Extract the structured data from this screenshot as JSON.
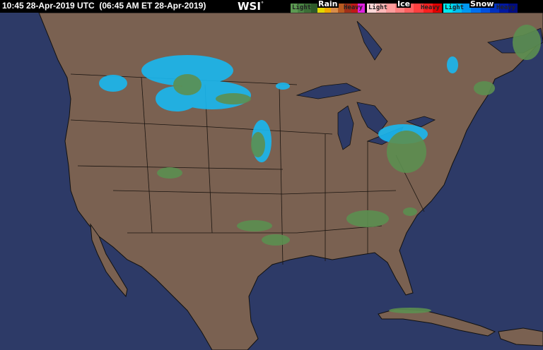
{
  "header": {
    "timestamp": "10:45 28-Apr-2019 UTC  (06:45 AM ET 28-Apr-2019)",
    "logo": "WSI",
    "logo_mark": "°"
  },
  "legend": {
    "rain": {
      "title": "Rain",
      "light": "Light",
      "heavy": "Heavy",
      "colors": [
        "#5c9a52",
        "#4a8444",
        "#3b6e36",
        "#2e5a2a",
        "#e2d800",
        "#f0a800",
        "#d88c4a",
        "#b85a20",
        "#a03018",
        "#c01818",
        "#e020e0"
      ]
    },
    "ice": {
      "title": "Ice",
      "light": "Light",
      "heavy": "Heavy",
      "colors": [
        "#ffd8d8",
        "#ffb8b8",
        "#ff9c9c",
        "#ff8080",
        "#ff6060",
        "#ff4040",
        "#ff2020",
        "#e00000"
      ]
    },
    "snow": {
      "title": "Snow",
      "light": "Light",
      "heavy": "Heavy",
      "colors": [
        "#00e8f0",
        "#00c0f0",
        "#0098f0",
        "#0070f0",
        "#0050e0",
        "#0030c0",
        "#0018a0",
        "#000c80"
      ]
    }
  },
  "colors": {
    "ocean": "#2d3a67",
    "land": "#7a6151",
    "borders": "#1a1410"
  }
}
